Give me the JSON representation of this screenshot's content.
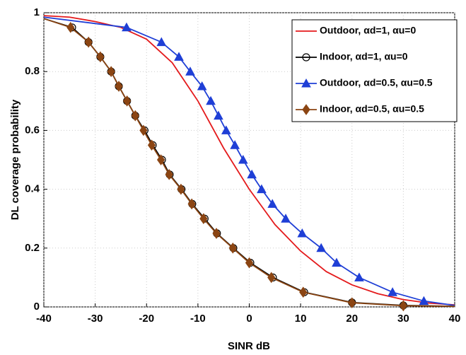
{
  "chart_data": {
    "type": "line",
    "xlabel": "SINR dB",
    "ylabel": "DL coverage probability",
    "xlim": [
      -40,
      40
    ],
    "ylim": [
      0,
      1
    ],
    "xticks": [
      -40,
      -30,
      -20,
      -10,
      0,
      10,
      20,
      30,
      40
    ],
    "yticks": [
      0,
      0.2,
      0.4,
      0.6,
      0.8,
      1
    ],
    "grid": true,
    "legend": "upper right",
    "series": [
      {
        "name": "Outdoor, αd=1, αu=0",
        "color": "#e41a1c",
        "marker": "none",
        "x": [
          -40,
          -35,
          -30,
          -25,
          -20,
          -15,
          -10,
          -5,
          0,
          5,
          10,
          15,
          20,
          25,
          30,
          35,
          40
        ],
        "values": [
          0.99,
          0.985,
          0.97,
          0.95,
          0.91,
          0.83,
          0.7,
          0.54,
          0.4,
          0.28,
          0.19,
          0.12,
          0.075,
          0.045,
          0.025,
          0.013,
          0.007
        ]
      },
      {
        "name": "Indoor, αd=1, αu=0",
        "color": "#000000",
        "marker": "circle",
        "x": [
          -40,
          -34.5,
          -31.3,
          -29,
          -26.9,
          -25.4,
          -23.8,
          -22.2,
          -20.4,
          -18.8,
          -17,
          -15.5,
          -13.2,
          -11.1,
          -8.7,
          -6.3,
          -3.1,
          0.2,
          4.6,
          10.7,
          20,
          30,
          40
        ],
        "values": [
          0.98,
          0.95,
          0.9,
          0.85,
          0.8,
          0.75,
          0.7,
          0.65,
          0.6,
          0.55,
          0.5,
          0.45,
          0.4,
          0.35,
          0.3,
          0.25,
          0.2,
          0.15,
          0.1,
          0.05,
          0.015,
          0.005,
          0.002
        ]
      },
      {
        "name": "Outdoor, αd=0.5, αu=0.5",
        "color": "#1f3fd6",
        "marker": "triangle",
        "x": [
          -40,
          -23.9,
          -17.1,
          -13.7,
          -11.5,
          -9.2,
          -7.5,
          -6,
          -4.5,
          -2.8,
          -1.2,
          0.5,
          2.4,
          4.5,
          7.1,
          10.3,
          14,
          17,
          21.4,
          27.9,
          34,
          40
        ],
        "values": [
          0.985,
          0.95,
          0.9,
          0.85,
          0.8,
          0.75,
          0.7,
          0.65,
          0.6,
          0.55,
          0.5,
          0.45,
          0.4,
          0.35,
          0.3,
          0.25,
          0.2,
          0.15,
          0.1,
          0.05,
          0.02,
          0.005
        ]
      },
      {
        "name": "Indoor, αd=0.5, αu=0.5",
        "color": "#8b4513",
        "marker": "diamond",
        "x": [
          -40,
          -34.8,
          -31.3,
          -29,
          -26.9,
          -25.4,
          -23.8,
          -22.2,
          -20.6,
          -19,
          -17.2,
          -15.6,
          -13.3,
          -11.2,
          -8.9,
          -6.4,
          -3.2,
          0,
          4.3,
          10.5,
          20,
          30,
          40
        ],
        "values": [
          0.98,
          0.95,
          0.9,
          0.85,
          0.8,
          0.75,
          0.7,
          0.65,
          0.6,
          0.55,
          0.5,
          0.45,
          0.4,
          0.35,
          0.3,
          0.25,
          0.2,
          0.15,
          0.1,
          0.05,
          0.014,
          0.004,
          0.002
        ]
      }
    ]
  }
}
